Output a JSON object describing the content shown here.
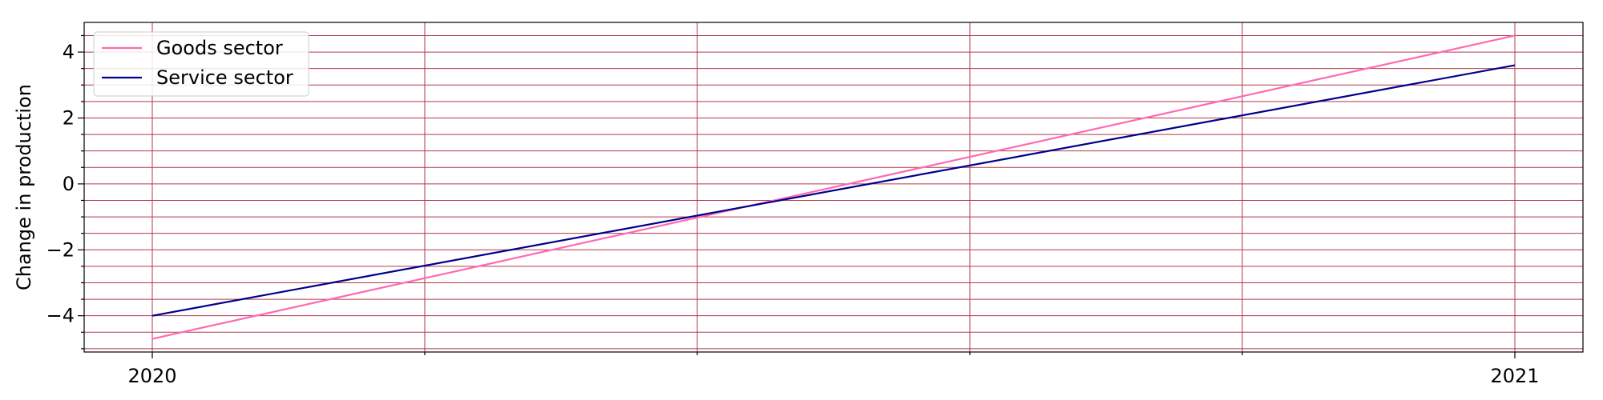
{
  "chart_data": {
    "type": "line",
    "title": "",
    "xlabel": "",
    "ylabel": "Change in production",
    "x": [
      2020,
      2021
    ],
    "x_tick_labels": [
      "2020",
      "2021"
    ],
    "ylim": [
      -5.1,
      4.9
    ],
    "y_major_ticks": [
      -4,
      -2,
      0,
      2,
      4
    ],
    "y_tick_labels": [
      "−4",
      "−2",
      "0",
      "2",
      "4"
    ],
    "grid": true,
    "legend_position": "top-left",
    "series": [
      {
        "name": "Goods sector",
        "color": "#ff69b4",
        "values": [
          -4.7,
          4.5
        ]
      },
      {
        "name": "Service sector",
        "color": "#00008b",
        "values": [
          -4.0,
          3.6
        ]
      }
    ],
    "grid_color": "#b03a48"
  }
}
